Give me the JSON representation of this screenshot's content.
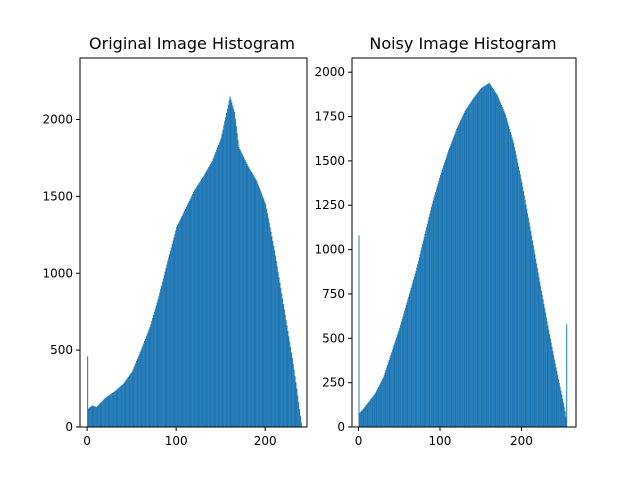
{
  "chart_data": [
    {
      "type": "bar",
      "title": "Original Image Histogram",
      "xlabel": "",
      "ylabel": "",
      "xlim": [
        -8,
        247
      ],
      "ylim": [
        0,
        2400
      ],
      "x_ticks": [
        0,
        100,
        200
      ],
      "y_ticks": [
        0,
        500,
        1000,
        1500,
        2000
      ],
      "bins": {
        "start": 0,
        "end": 240,
        "step": 1
      },
      "color": "#1f77b4",
      "x": [
        0,
        1,
        5,
        10,
        20,
        30,
        40,
        50,
        60,
        70,
        80,
        90,
        100,
        110,
        120,
        130,
        140,
        150,
        160,
        165,
        170,
        180,
        190,
        200,
        210,
        220,
        230,
        235,
        240
      ],
      "values": [
        460,
        120,
        140,
        130,
        190,
        230,
        280,
        360,
        500,
        650,
        850,
        1080,
        1300,
        1420,
        1540,
        1630,
        1730,
        1880,
        2150,
        2050,
        1820,
        1700,
        1600,
        1450,
        1150,
        800,
        450,
        250,
        30
      ]
    },
    {
      "type": "bar",
      "title": "Noisy Image Histogram",
      "xlabel": "",
      "ylabel": "",
      "xlim": [
        -8,
        267
      ],
      "ylim": [
        0,
        2080
      ],
      "x_ticks": [
        0,
        100,
        200
      ],
      "y_ticks": [
        0,
        250,
        500,
        750,
        1000,
        1250,
        1500,
        1750,
        2000
      ],
      "bins": {
        "start": 0,
        "end": 255,
        "step": 1
      },
      "color": "#1f77b4",
      "x": [
        0,
        1,
        5,
        10,
        20,
        30,
        40,
        50,
        60,
        70,
        80,
        90,
        100,
        110,
        120,
        130,
        140,
        150,
        160,
        170,
        180,
        190,
        200,
        210,
        220,
        230,
        240,
        250,
        253,
        254,
        255
      ],
      "values": [
        1080,
        80,
        100,
        130,
        190,
        280,
        420,
        560,
        720,
        880,
        1070,
        1260,
        1420,
        1560,
        1680,
        1780,
        1850,
        1910,
        1940,
        1870,
        1760,
        1600,
        1380,
        1130,
        870,
        620,
        380,
        160,
        90,
        60,
        580
      ]
    }
  ]
}
